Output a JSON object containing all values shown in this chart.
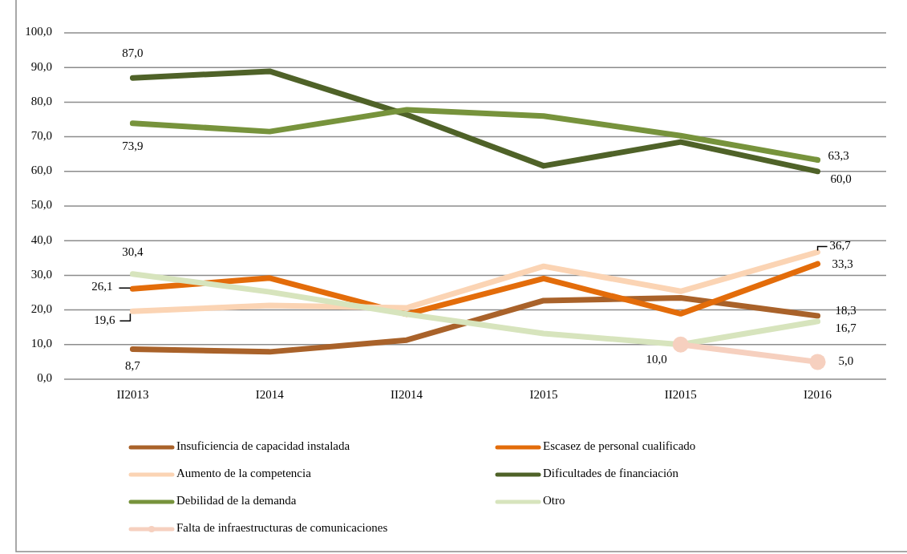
{
  "chart_data": {
    "type": "line",
    "categories": [
      "II2013",
      "I2014",
      "II2014",
      "I2015",
      "II2015",
      "I2016"
    ],
    "ylim": [
      0,
      100
    ],
    "yticks": [
      {
        "value": 0,
        "label": "0,0"
      },
      {
        "value": 10,
        "label": "10,0"
      },
      {
        "value": 20,
        "label": "20,0"
      },
      {
        "value": 30,
        "label": "30,0"
      },
      {
        "value": 40,
        "label": "40,0"
      },
      {
        "value": 50,
        "label": "50,0"
      },
      {
        "value": 60,
        "label": "60,0"
      },
      {
        "value": 70,
        "label": "70,0"
      },
      {
        "value": 80,
        "label": "80,0"
      },
      {
        "value": 90,
        "label": "90,0"
      },
      {
        "value": 100,
        "label": "100,0"
      }
    ],
    "grid": "y",
    "legend": "bottom",
    "series": [
      {
        "name": "Insuficiencia de capacidad instalada",
        "color": "#a9622a",
        "values": [
          8.7,
          7.9,
          11.3,
          22.7,
          23.5,
          18.3
        ],
        "value_labels": [
          "8,7",
          null,
          null,
          null,
          null,
          "18,3"
        ]
      },
      {
        "name": "Escasez de personal cualificado",
        "color": "#e36c0a",
        "values": [
          26.1,
          29.2,
          18.8,
          29.1,
          18.9,
          33.3
        ],
        "value_labels": [
          "26,1",
          null,
          null,
          null,
          null,
          "33,3"
        ]
      },
      {
        "name": "Aumento de la competencia",
        "color": "#fbd4b4",
        "values": [
          19.6,
          21.3,
          20.6,
          32.6,
          25.4,
          36.7
        ],
        "value_labels": [
          "19,6",
          null,
          null,
          null,
          null,
          "36,7"
        ]
      },
      {
        "name": "Dificultades de financiación",
        "color": "#4f6228",
        "values": [
          87.0,
          88.9,
          76.4,
          61.6,
          68.5,
          60.0
        ],
        "value_labels": [
          "87,0",
          null,
          null,
          null,
          null,
          "60,0"
        ]
      },
      {
        "name": "Debilidad de la demanda",
        "color": "#77933c",
        "values": [
          73.9,
          71.5,
          77.8,
          76.0,
          70.3,
          63.3
        ],
        "value_labels": [
          "73,9",
          null,
          null,
          null,
          null,
          "63,3"
        ]
      },
      {
        "name": "Otro",
        "color": "#d7e4bd",
        "values": [
          30.4,
          25.2,
          18.8,
          13.2,
          10.0,
          16.7
        ],
        "value_labels": [
          "30,4",
          null,
          null,
          null,
          null,
          "16,7"
        ]
      },
      {
        "name": "Falta de infraestructuras de comunicaciones",
        "color": "#f6d0bf",
        "marker": "circle",
        "values": [
          null,
          null,
          null,
          null,
          10.0,
          5.0
        ],
        "value_labels": [
          null,
          null,
          null,
          null,
          "10,0",
          "5,0"
        ]
      }
    ]
  }
}
